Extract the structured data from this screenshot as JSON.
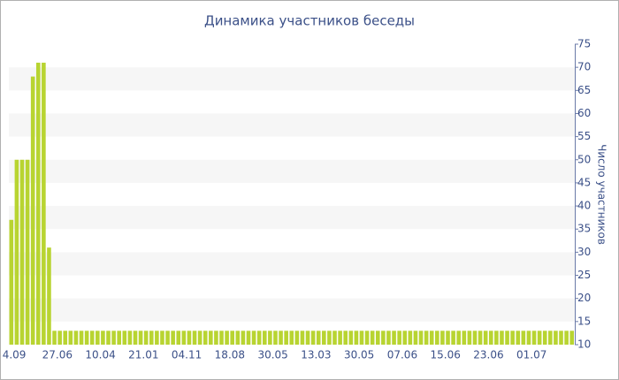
{
  "chart_data": {
    "type": "bar",
    "title": "Динамика участников беседы",
    "y_label": "Число участников",
    "color": "#b8d431",
    "grid": true,
    "ylim": [
      10,
      75
    ],
    "yticks": [
      10,
      15,
      20,
      25,
      30,
      35,
      40,
      45,
      50,
      55,
      60,
      65,
      70,
      75
    ],
    "categories": [
      "4.09",
      null,
      null,
      null,
      null,
      null,
      null,
      null,
      "27.06",
      null,
      null,
      null,
      null,
      null,
      null,
      null,
      "10.04",
      null,
      null,
      null,
      null,
      null,
      null,
      null,
      "21.01",
      null,
      null,
      null,
      null,
      null,
      null,
      null,
      "04.11",
      null,
      null,
      null,
      null,
      null,
      null,
      null,
      "18.08",
      null,
      null,
      null,
      null,
      null,
      null,
      null,
      "30.05",
      null,
      null,
      null,
      null,
      null,
      null,
      null,
      "13.03",
      null,
      null,
      null,
      null,
      null,
      null,
      null,
      "30.05",
      null,
      null,
      null,
      null,
      null,
      null,
      null,
      "07.06",
      null,
      null,
      null,
      null,
      null,
      null,
      null,
      "15.06",
      null,
      null,
      null,
      null,
      null,
      null,
      null,
      "23.06",
      null,
      null,
      null,
      null,
      null,
      null,
      null,
      "01.07",
      null,
      null,
      null,
      null,
      null,
      null,
      null,
      null
    ],
    "values": [
      37,
      50,
      50,
      50,
      68,
      71,
      71,
      31,
      13,
      13,
      13,
      13,
      13,
      13,
      13,
      13,
      13,
      13,
      13,
      13,
      13,
      13,
      13,
      13,
      13,
      13,
      13,
      13,
      13,
      13,
      13,
      13,
      13,
      13,
      13,
      13,
      13,
      13,
      13,
      13,
      13,
      13,
      13,
      13,
      13,
      13,
      13,
      13,
      13,
      13,
      13,
      13,
      13,
      13,
      13,
      13,
      13,
      13,
      13,
      13,
      13,
      13,
      13,
      13,
      13,
      13,
      13,
      13,
      13,
      13,
      13,
      13,
      13,
      13,
      13,
      13,
      13,
      13,
      13,
      13,
      13,
      13,
      13,
      13,
      13,
      13,
      13,
      13,
      13,
      13,
      13,
      13,
      13,
      13,
      13,
      13,
      13,
      13,
      13,
      13,
      13,
      13,
      13,
      13,
      13
    ]
  }
}
